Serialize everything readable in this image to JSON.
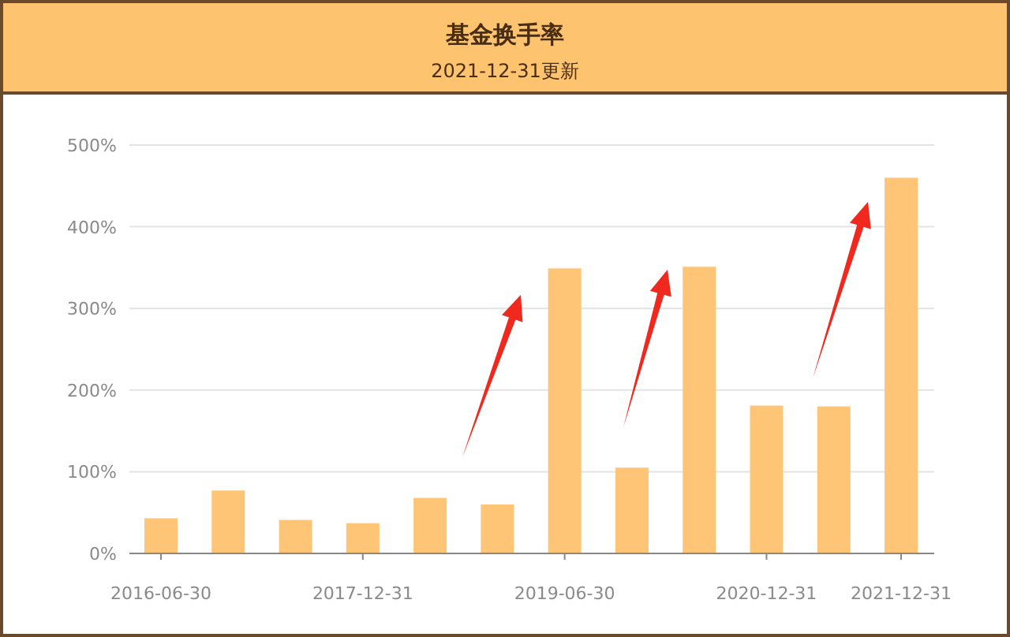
{
  "chart_data": {
    "type": "bar",
    "title": "基金换手率",
    "subtitle": "2021-12-31更新",
    "categories": [
      "2016-06-30",
      null,
      null,
      "2017-12-31",
      null,
      null,
      "2019-06-30",
      null,
      null,
      "2020-12-31",
      null,
      "2021-12-31"
    ],
    "values": [
      43,
      77,
      41,
      37,
      68,
      60,
      349,
      105,
      351,
      181,
      180,
      460
    ],
    "color": "#fec576",
    "ylim": [
      0,
      500
    ],
    "yticks": [
      {
        "value": 0,
        "label": "0%"
      },
      {
        "value": 100,
        "label": "100%"
      },
      {
        "value": 200,
        "label": "200%"
      },
      {
        "value": 300,
        "label": "300%"
      },
      {
        "value": 400,
        "label": "400%"
      },
      {
        "value": 500,
        "label": "500%"
      }
    ],
    "grid": "y"
  }
}
